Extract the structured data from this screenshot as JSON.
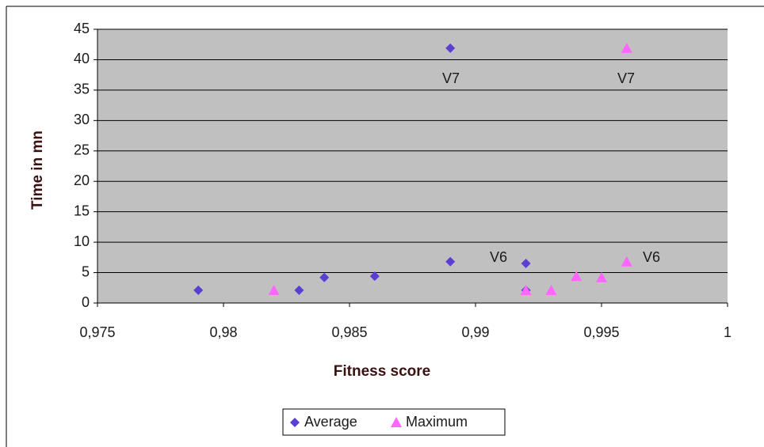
{
  "chart_data": {
    "type": "scatter",
    "x_label": "Fitness score",
    "y_label": "Time in mn",
    "xlim": [
      0.975,
      1
    ],
    "ylim": [
      0,
      45
    ],
    "xticks": [
      {
        "value": 0.975,
        "label": "0,975"
      },
      {
        "value": 0.98,
        "label": "0,98"
      },
      {
        "value": 0.985,
        "label": "0,985"
      },
      {
        "value": 0.99,
        "label": "0,99"
      },
      {
        "value": 0.995,
        "label": "0,995"
      },
      1
    ],
    "yticks": [
      0,
      5,
      10,
      15,
      20,
      25,
      30,
      35,
      40,
      45
    ],
    "grid": true,
    "legend": "bottom",
    "series": [
      {
        "name": "Average",
        "color": "#5b3fd3",
        "marker": "diamond",
        "x": [
          0.979,
          0.983,
          0.984,
          0.986,
          0.989,
          0.989,
          0.992,
          0.992
        ],
        "values": [
          2.1,
          2.1,
          4.2,
          4.4,
          6.8,
          41.9,
          6.5,
          2.1
        ]
      },
      {
        "name": "Maximum",
        "color": "#ff66ff",
        "marker": "triangle",
        "x": [
          0.982,
          0.992,
          0.993,
          0.994,
          0.995,
          0.996,
          0.996
        ],
        "values": [
          2.1,
          2.1,
          2.1,
          4.4,
          4.2,
          6.8,
          41.9
        ]
      }
    ],
    "annotations": [
      "V7",
      "V7",
      "V6",
      "V6"
    ]
  }
}
